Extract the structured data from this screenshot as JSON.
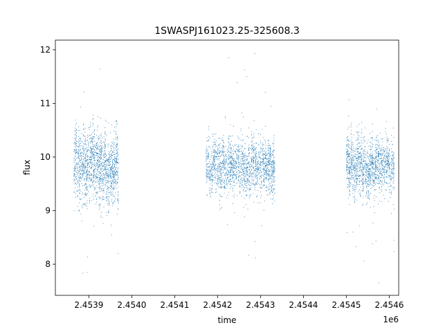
{
  "chart_data": {
    "type": "scatter",
    "title": "1SWASPJ161023.25-325608.3",
    "xlabel": "time",
    "ylabel": "flux",
    "x_offset_label": "1e6",
    "x_ticks": [
      2.4539,
      2.454,
      2.4541,
      2.4542,
      2.4543,
      2.4544,
      2.4545,
      2.4546
    ],
    "x_tick_labels": [
      "2.4539",
      "2.4540",
      "2.4541",
      "2.4542",
      "2.4543",
      "2.4544",
      "2.4545",
      "2.4546"
    ],
    "y_ticks": [
      8,
      9,
      10,
      11,
      12
    ],
    "y_tick_labels": [
      "8",
      "9",
      "10",
      "11",
      "12"
    ],
    "xlim": [
      2453822,
      2454622
    ],
    "ylim": [
      7.42,
      12.18
    ],
    "grid": false,
    "marker_color": "#1f77b4",
    "point_count_note": "",
    "clusters": [
      {
        "x_start": 2453865,
        "x_end": 2453970,
        "y_center": 9.85,
        "y_spread": 0.55,
        "n": 1600
      },
      {
        "x_start": 2454173,
        "x_end": 2454334,
        "y_center": 9.82,
        "y_spread": 0.42,
        "n": 1900
      },
      {
        "x_start": 2454500,
        "x_end": 2454611,
        "y_center": 9.82,
        "y_spread": 0.45,
        "n": 1500
      }
    ]
  }
}
